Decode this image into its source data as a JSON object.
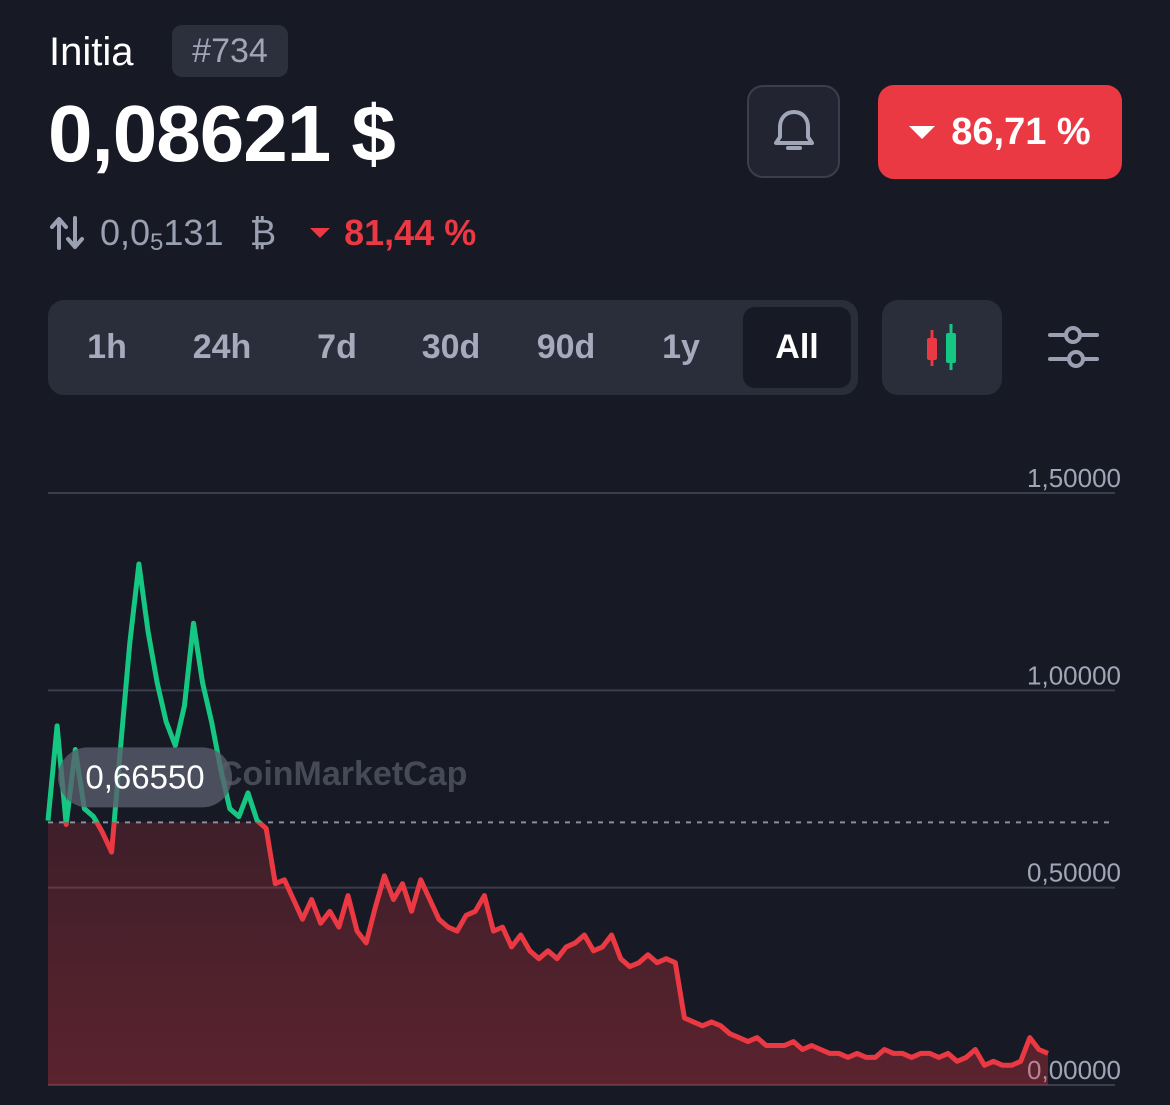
{
  "header": {
    "coin_name": "Initia",
    "rank": "#734",
    "price": "0,08621 $",
    "change_pct": "86,71 %",
    "change_direction": "down"
  },
  "btc": {
    "prefix": "0,0",
    "subscript": "5",
    "digits": "131",
    "symbol": "₿",
    "change_pct": "81,44 %"
  },
  "icons": {
    "alert": "bell-icon",
    "swap": "swap-arrows-icon",
    "chart_type": "candlestick-icon",
    "settings": "sliders-icon"
  },
  "time_ranges": [
    {
      "label": "1h",
      "active": false
    },
    {
      "label": "24h",
      "active": false
    },
    {
      "label": "7d",
      "active": false
    },
    {
      "label": "30d",
      "active": false
    },
    {
      "label": "90d",
      "active": false
    },
    {
      "label": "1y",
      "active": false
    },
    {
      "label": "All",
      "active": true
    }
  ],
  "colors": {
    "up": "#16c784",
    "down": "#ea3943",
    "background": "#171924"
  },
  "chart_data": {
    "type": "line",
    "title": "",
    "watermark": "CoinMarketCap",
    "reference_label": "0,66550",
    "reference_value": 0.6655,
    "ylim": [
      0,
      1.5
    ],
    "y_ticks": [
      {
        "value": 1.5,
        "label": "1,50000"
      },
      {
        "value": 1.0,
        "label": "1,00000"
      },
      {
        "value": 0.5,
        "label": "0,50000"
      },
      {
        "value": 0.0,
        "label": "0,00000"
      }
    ],
    "grid": true,
    "series": [
      {
        "values": [
          0.67,
          0.91,
          0.66,
          0.85,
          0.7,
          0.68,
          0.64,
          0.59,
          0.86,
          1.12,
          1.32,
          1.15,
          1.02,
          0.92,
          0.86,
          0.96,
          1.17,
          1.02,
          0.92,
          0.8,
          0.7,
          0.68,
          0.74,
          0.67,
          0.65,
          0.51,
          0.52,
          0.47,
          0.42,
          0.47,
          0.41,
          0.44,
          0.4,
          0.48,
          0.39,
          0.36,
          0.45,
          0.53,
          0.47,
          0.51,
          0.44,
          0.52,
          0.47,
          0.42,
          0.4,
          0.39,
          0.43,
          0.44,
          0.48,
          0.39,
          0.4,
          0.35,
          0.38,
          0.34,
          0.32,
          0.34,
          0.32,
          0.35,
          0.36,
          0.38,
          0.34,
          0.35,
          0.38,
          0.32,
          0.3,
          0.31,
          0.33,
          0.31,
          0.32,
          0.31,
          0.17,
          0.16,
          0.15,
          0.16,
          0.15,
          0.13,
          0.12,
          0.11,
          0.12,
          0.1,
          0.1,
          0.1,
          0.11,
          0.09,
          0.1,
          0.09,
          0.08,
          0.08,
          0.07,
          0.08,
          0.07,
          0.07,
          0.09,
          0.08,
          0.08,
          0.07,
          0.08,
          0.08,
          0.07,
          0.08,
          0.06,
          0.07,
          0.09,
          0.05,
          0.06,
          0.05,
          0.05,
          0.06,
          0.12,
          0.09,
          0.08
        ]
      }
    ]
  }
}
